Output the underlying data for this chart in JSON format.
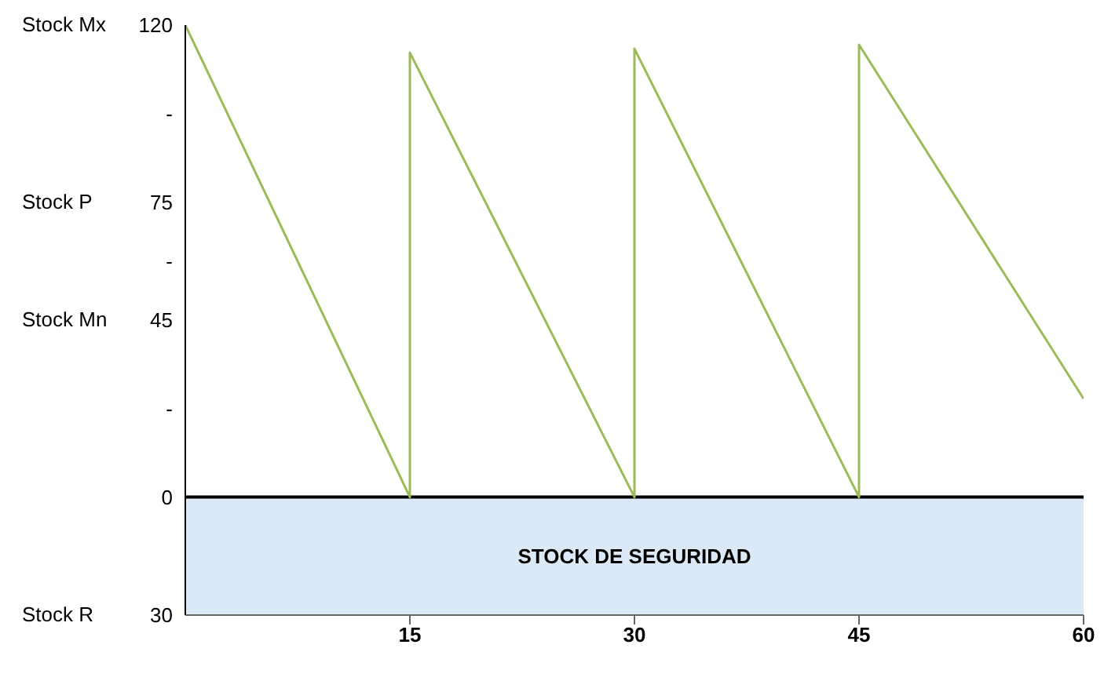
{
  "chart_data": {
    "type": "line",
    "x": [
      0,
      15,
      15,
      30,
      30,
      45,
      45,
      60
    ],
    "series": [
      {
        "color": "#9bbb59",
        "values": [
          120,
          0,
          113,
          0,
          114,
          0,
          115,
          25
        ]
      }
    ],
    "xlim": [
      0,
      60
    ],
    "xticks": [
      15,
      30,
      45,
      60
    ],
    "ylim": [
      -30,
      120
    ],
    "yticks": [
      120,
      {
        "value": 97.5,
        "label": "-"
      },
      75,
      {
        "value": 60,
        "label": "-"
      },
      45,
      {
        "value": 22.5,
        "label": "-"
      },
      0,
      {
        "value": -30,
        "label": "30"
      }
    ],
    "annotations": [
      "Stock Mx",
      "Stock P",
      "Stock Mn",
      "Stock R"
    ],
    "bands": [
      {
        "axis": "y",
        "from": -30,
        "to": 0,
        "label": "STOCK DE SEGURIDAD",
        "color": "#dbe9f7"
      }
    ],
    "ref_lines": [
      {
        "axis": "y",
        "value": 0,
        "color": "#000000"
      }
    ],
    "marker": "none",
    "line_style": "solid",
    "grid": false,
    "legend": false
  }
}
